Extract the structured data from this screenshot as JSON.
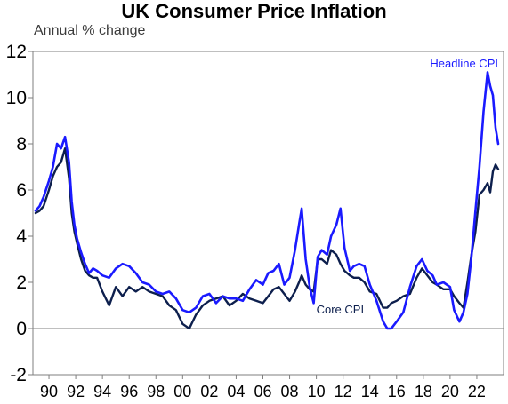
{
  "chart_data": {
    "type": "line",
    "title": "UK Consumer Price Inflation",
    "ylabel": "Annual % change",
    "xlabel": "",
    "xlim": [
      1988.8,
      2024.0
    ],
    "ylim": [
      -2,
      12
    ],
    "yticks": [
      -2,
      0,
      2,
      4,
      6,
      8,
      10,
      12
    ],
    "xticks": [
      "90",
      "92",
      "94",
      "96",
      "98",
      "00",
      "02",
      "04",
      "06",
      "08",
      "10",
      "12",
      "14",
      "16",
      "18",
      "20",
      "22"
    ],
    "xtick_years": [
      1990,
      1992,
      1994,
      1996,
      1998,
      2000,
      2002,
      2004,
      2006,
      2008,
      2010,
      2012,
      2014,
      2016,
      2018,
      2020,
      2022
    ],
    "zero_line": true,
    "grid": false,
    "series": [
      {
        "name": "Headline CPI",
        "color": "#1a1aff",
        "x": [
          1989.0,
          1989.3,
          1989.6,
          1990.0,
          1990.3,
          1990.6,
          1990.9,
          1991.2,
          1991.5,
          1991.7,
          1991.9,
          1992.1,
          1992.4,
          1992.7,
          1993.0,
          1993.3,
          1993.6,
          1994.0,
          1994.5,
          1995.0,
          1995.5,
          1996.0,
          1996.5,
          1997.0,
          1997.5,
          1998.0,
          1998.5,
          1999.0,
          1999.5,
          2000.0,
          2000.5,
          2001.0,
          2001.5,
          2002.0,
          2002.5,
          2003.0,
          2003.5,
          2004.0,
          2004.5,
          2005.0,
          2005.5,
          2006.0,
          2006.4,
          2006.8,
          2007.2,
          2007.6,
          2008.0,
          2008.4,
          2008.7,
          2008.9,
          2009.2,
          2009.5,
          2009.8,
          2010.1,
          2010.4,
          2010.8,
          2011.1,
          2011.5,
          2011.8,
          2012.1,
          2012.5,
          2012.8,
          2013.2,
          2013.6,
          2014.0,
          2014.5,
          2015.0,
          2015.3,
          2015.6,
          2016.0,
          2016.5,
          2017.0,
          2017.5,
          2017.9,
          2018.3,
          2018.7,
          2019.0,
          2019.5,
          2020.0,
          2020.3,
          2020.7,
          2021.0,
          2021.3,
          2021.6,
          2021.9,
          2022.2,
          2022.5,
          2022.8,
          2023.0,
          2023.2,
          2023.4,
          2023.6
        ],
        "y": [
          5.1,
          5.3,
          5.7,
          6.4,
          7.0,
          8.0,
          7.8,
          8.3,
          7.2,
          5.5,
          4.5,
          3.9,
          3.3,
          2.8,
          2.4,
          2.6,
          2.5,
          2.3,
          2.2,
          2.6,
          2.8,
          2.7,
          2.4,
          2.0,
          1.9,
          1.6,
          1.5,
          1.6,
          1.3,
          0.8,
          0.7,
          0.9,
          1.4,
          1.5,
          1.1,
          1.4,
          1.3,
          1.3,
          1.2,
          1.7,
          2.1,
          1.9,
          2.4,
          2.5,
          2.8,
          1.9,
          2.2,
          3.4,
          4.5,
          5.2,
          3.0,
          1.8,
          1.1,
          3.1,
          3.4,
          3.2,
          4.0,
          4.5,
          5.2,
          3.5,
          2.5,
          2.7,
          2.8,
          2.7,
          1.9,
          1.2,
          0.3,
          0.0,
          0.0,
          0.3,
          0.7,
          1.8,
          2.7,
          3.0,
          2.5,
          2.3,
          1.9,
          2.0,
          1.8,
          0.8,
          0.3,
          0.7,
          1.5,
          3.1,
          5.1,
          7.0,
          9.4,
          11.1,
          10.5,
          10.1,
          8.7,
          8.0
        ]
      },
      {
        "name": "Core CPI",
        "color": "#0d1f4d",
        "x": [
          1989.0,
          1989.3,
          1989.6,
          1990.0,
          1990.3,
          1990.6,
          1990.9,
          1991.2,
          1991.5,
          1991.7,
          1991.9,
          1992.1,
          1992.4,
          1992.7,
          1993.0,
          1993.3,
          1993.6,
          1994.0,
          1994.5,
          1995.0,
          1995.5,
          1996.0,
          1996.5,
          1997.0,
          1997.5,
          1998.0,
          1998.5,
          1999.0,
          1999.5,
          2000.0,
          2000.5,
          2001.0,
          2001.5,
          2002.0,
          2002.5,
          2003.0,
          2003.5,
          2004.0,
          2004.5,
          2005.0,
          2005.5,
          2006.0,
          2006.4,
          2006.8,
          2007.2,
          2007.6,
          2008.0,
          2008.4,
          2008.7,
          2008.9,
          2009.2,
          2009.5,
          2009.8,
          2010.1,
          2010.4,
          2010.8,
          2011.1,
          2011.5,
          2011.8,
          2012.1,
          2012.5,
          2012.8,
          2013.2,
          2013.6,
          2014.0,
          2014.5,
          2015.0,
          2015.3,
          2015.6,
          2016.0,
          2016.5,
          2017.0,
          2017.5,
          2017.9,
          2018.3,
          2018.7,
          2019.0,
          2019.5,
          2020.0,
          2020.3,
          2020.7,
          2021.0,
          2021.3,
          2021.6,
          2021.9,
          2022.2,
          2022.5,
          2022.8,
          2023.0,
          2023.2,
          2023.4,
          2023.6
        ],
        "y": [
          5.0,
          5.1,
          5.3,
          6.0,
          6.6,
          7.0,
          7.2,
          7.8,
          6.5,
          5.0,
          4.2,
          3.7,
          3.0,
          2.5,
          2.3,
          2.2,
          2.2,
          1.6,
          1.0,
          1.8,
          1.4,
          1.8,
          1.6,
          1.8,
          1.6,
          1.5,
          1.4,
          1.0,
          0.8,
          0.2,
          0.0,
          0.6,
          1.0,
          1.2,
          1.3,
          1.4,
          1.0,
          1.2,
          1.5,
          1.3,
          1.2,
          1.1,
          1.4,
          1.7,
          1.8,
          1.5,
          1.2,
          1.6,
          2.0,
          2.3,
          1.9,
          1.7,
          1.6,
          3.0,
          3.0,
          2.8,
          3.4,
          3.2,
          2.8,
          2.5,
          2.3,
          2.2,
          2.2,
          2.0,
          1.6,
          1.5,
          0.9,
          0.9,
          1.1,
          1.2,
          1.4,
          1.5,
          2.2,
          2.6,
          2.3,
          2.0,
          1.9,
          1.7,
          1.7,
          1.4,
          1.1,
          0.9,
          2.0,
          3.2,
          4.2,
          5.8,
          6.0,
          6.3,
          5.9,
          6.8,
          7.1,
          6.9
        ]
      }
    ]
  }
}
